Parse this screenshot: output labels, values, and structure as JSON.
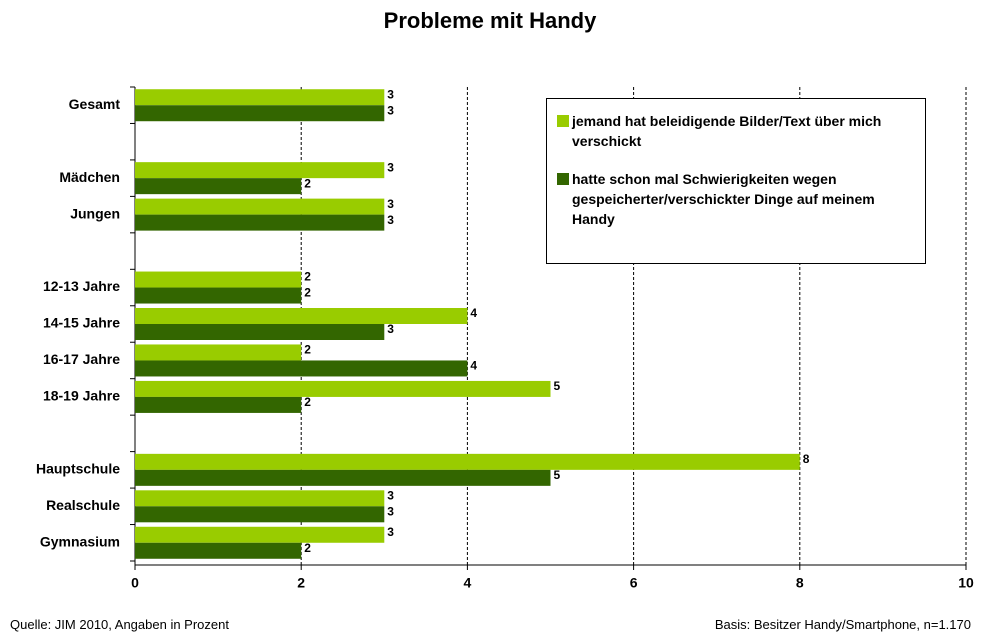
{
  "chart_data": {
    "type": "bar",
    "orientation": "horizontal",
    "title": "Probleme mit Handy",
    "categories": [
      "Gesamt",
      null,
      "Mädchen",
      "Jungen",
      null,
      "12-13 Jahre",
      "14-15 Jahre",
      "16-17 Jahre",
      "18-19 Jahre",
      null,
      "Hauptschule",
      "Realschule",
      "Gymnasium"
    ],
    "series": [
      {
        "name": "jemand hat beleidigende Bilder/Text über mich verschickt",
        "color": "#99cc00",
        "values": [
          3,
          null,
          3,
          3,
          null,
          2,
          4,
          2,
          5,
          null,
          8,
          3,
          3
        ]
      },
      {
        "name": "hatte schon mal Schwierigkeiten wegen gespeicherter/verschickter Dinge auf meinem Handy",
        "color": "#336600",
        "values": [
          3,
          null,
          2,
          3,
          null,
          2,
          3,
          4,
          2,
          null,
          5,
          3,
          2
        ]
      }
    ],
    "xlim": [
      0,
      10
    ],
    "xticks": [
      0,
      2,
      4,
      6,
      8,
      10
    ],
    "grid": true,
    "legend": "upper right",
    "source": "Quelle: JIM 2010, Angaben in Prozent",
    "note": "Basis: Besitzer Handy/Smartphone, n=1.170"
  }
}
